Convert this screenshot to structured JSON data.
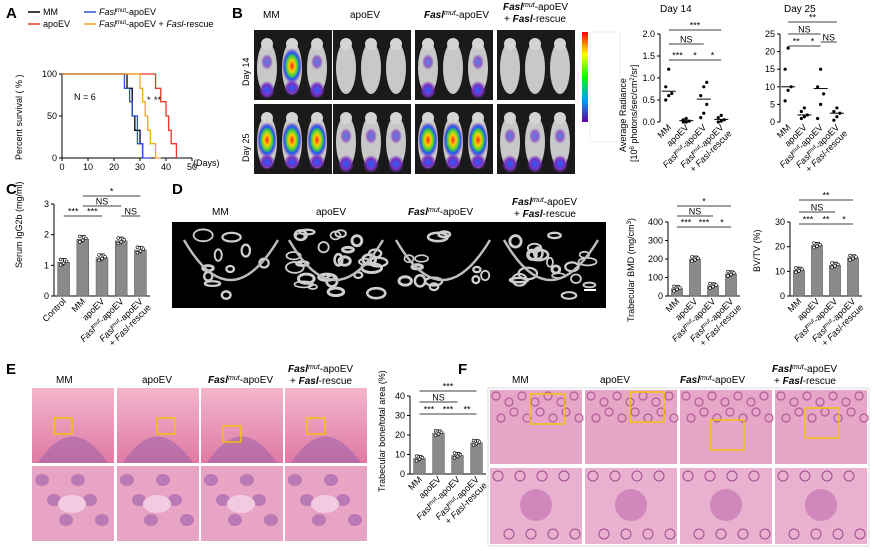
{
  "panels": {
    "A": "A",
    "B": "B",
    "C": "C",
    "D": "D",
    "E": "E",
    "F": "F"
  },
  "groups": [
    "MM",
    "apoEV",
    "Fasl",
    "mut",
    "-apoEV",
    "Fasl",
    "-rescue"
  ],
  "group_labels": {
    "mm": "MM",
    "apoev": "apoEV",
    "mut_prefix": "Fasl",
    "mut_sup": "mut",
    "mut_suffix": "-apoEV",
    "rescue_plus": "+ ",
    "rescue_fasl": "Fasl",
    "rescue_suffix": "-rescue"
  },
  "sig": {
    "s1": "*",
    "s2": "**",
    "s3": "***",
    "ns": "NS"
  },
  "panelA": {
    "legend": [
      "MM",
      "apoEV",
      "Fasl",
      "mut",
      "-apoEV",
      "Fasl",
      "mut",
      "-apoEV + ",
      "Fasl",
      "-rescue"
    ],
    "n_label": "N = 6",
    "ylabel": "Percent survival ( % )",
    "xlabel_unit": "(Days)",
    "colors": {
      "MM": "#000000",
      "apoEV": "#e8372a",
      "mut": "#2f4fd8",
      "rescue": "#f5a623"
    }
  },
  "panelB": {
    "row_day14": "Day 14",
    "row_day25": "Day 25",
    "chart_day14_title": "Day 14",
    "chart_day25_title": "Day 25",
    "ylabel_line1": "Average Radiance",
    "ylabel_line2": "[10",
    "ylabel_sup": "6",
    "ylabel_line3": " photons/sec/cm",
    "ylabel_sup2": "2",
    "ylabel_line4": "/sr]"
  },
  "panelC": {
    "ylabel": "Serum IgG2b (mg/ml)",
    "control": "Control"
  },
  "panelD": {
    "bmd_ylabel": "Trabecular BMD (mg/cm",
    "bmd_sup": "3",
    "bmd_close": ")",
    "bvtv_ylabel": "BV/TV (%)"
  },
  "panelE": {
    "ylabel": "Trabecular bone/total area (%)"
  },
  "chart_data": [
    {
      "id": "A",
      "type": "line",
      "xlabel": "(Days)",
      "ylabel": "Percent survival ( % )",
      "xlim": [
        0,
        50
      ],
      "ylim": [
        0,
        100
      ],
      "xticks": [
        0,
        10,
        20,
        30,
        40,
        50
      ],
      "yticks": [
        0,
        50,
        100
      ],
      "series": [
        {
          "name": "MM",
          "color": "#000000",
          "steps": [
            [
              0,
              100
            ],
            [
              25,
              100
            ],
            [
              25,
              83
            ],
            [
              27,
              83
            ],
            [
              27,
              50
            ],
            [
              28,
              50
            ],
            [
              28,
              33
            ],
            [
              30,
              33
            ],
            [
              30,
              17
            ],
            [
              31,
              17
            ],
            [
              31,
              0
            ]
          ]
        },
        {
          "name": "apoEV",
          "color": "#e8372a",
          "steps": [
            [
              0,
              100
            ],
            [
              36,
              100
            ],
            [
              36,
              83
            ],
            [
              38,
              83
            ],
            [
              38,
              67
            ],
            [
              40,
              67
            ],
            [
              40,
              50
            ],
            [
              41,
              50
            ],
            [
              41,
              33
            ],
            [
              42,
              33
            ],
            [
              42,
              17
            ],
            [
              44,
              17
            ],
            [
              44,
              0
            ]
          ]
        },
        {
          "name": "Fasl mut-apoEV",
          "color": "#2f4fd8",
          "steps": [
            [
              0,
              100
            ],
            [
              24,
              100
            ],
            [
              24,
              83
            ],
            [
              26,
              83
            ],
            [
              26,
              67
            ],
            [
              27,
              67
            ],
            [
              27,
              50
            ],
            [
              29,
              50
            ],
            [
              29,
              17
            ],
            [
              31,
              17
            ],
            [
              31,
              0
            ],
            [
              34,
              0
            ]
          ]
        },
        {
          "name": "Fasl mut-apoEV + Fasl-rescue",
          "color": "#f5a623",
          "steps": [
            [
              0,
              100
            ],
            [
              30,
              100
            ],
            [
              30,
              83
            ],
            [
              31,
              83
            ],
            [
              31,
              67
            ],
            [
              32,
              67
            ],
            [
              32,
              50
            ],
            [
              33,
              50
            ],
            [
              33,
              33
            ],
            [
              34,
              33
            ],
            [
              34,
              17
            ],
            [
              36,
              17
            ],
            [
              36,
              0
            ],
            [
              38,
              0
            ]
          ]
        }
      ],
      "annotations": [
        "*",
        "**"
      ]
    },
    {
      "id": "B-day14",
      "type": "scatter",
      "title": "Day 14",
      "ylim": [
        0,
        2
      ],
      "yticks": [
        0,
        0.5,
        1.0,
        1.5,
        2.0
      ],
      "categories": [
        "MM",
        "apoEV",
        "Fasl mut-apoEV",
        "Fasl mut-apoEV + Fasl-rescue"
      ],
      "points": [
        [
          0.5,
          0.6,
          0.65,
          0.8,
          1.2
        ],
        [
          0,
          0,
          0.02,
          0.05,
          0.08
        ],
        [
          0.1,
          0.2,
          0.4,
          0.6,
          0.8,
          0.9
        ],
        [
          0,
          0.02,
          0.05,
          0.1,
          0.15
        ]
      ],
      "medians": [
        0.7,
        0.03,
        0.52,
        0.06
      ]
    },
    {
      "id": "B-day25",
      "type": "scatter",
      "title": "Day 25",
      "ylim": [
        0,
        25
      ],
      "yticks": [
        0,
        5,
        10,
        15,
        20,
        25
      ],
      "categories": [
        "MM",
        "apoEV",
        "Fasl mut-apoEV",
        "Fasl mut-apoEV + Fasl-rescue"
      ],
      "points": [
        [
          6,
          9,
          10,
          15,
          21
        ],
        [
          1,
          1.5,
          2,
          3,
          4
        ],
        [
          1,
          5,
          8,
          10,
          15
        ],
        [
          0.5,
          1.5,
          2.5,
          3,
          4
        ]
      ],
      "medians": [
        10,
        2,
        9.5,
        2.5
      ]
    },
    {
      "id": "C",
      "type": "bar",
      "ylabel": "Serum IgG2b (mg/ml)",
      "ylim": [
        0,
        3
      ],
      "yticks": [
        0,
        1,
        2,
        3
      ],
      "categories": [
        "Control",
        "MM",
        "apoEV",
        "Fasl mut-apoEV",
        "Fasl mut-apoEV + Fasl-rescue"
      ],
      "values": [
        1.1,
        1.85,
        1.25,
        1.8,
        1.5
      ]
    },
    {
      "id": "D-BMD",
      "type": "bar",
      "ylabel": "Trabecular BMD (mg/cm3)",
      "ylim": [
        0,
        400
      ],
      "yticks": [
        0,
        100,
        200,
        300,
        400
      ],
      "categories": [
        "MM",
        "apoEV",
        "Fasl mut-apoEV",
        "Fasl mut-apoEV + Fasl-rescue"
      ],
      "values": [
        40,
        200,
        55,
        120
      ]
    },
    {
      "id": "D-BVTV",
      "type": "bar",
      "ylabel": "BV/TV (%)",
      "ylim": [
        0,
        30
      ],
      "yticks": [
        0,
        10,
        20,
        30
      ],
      "categories": [
        "MM",
        "apoEV",
        "Fasl mut-apoEV",
        "Fasl mut-apoEV + Fasl-rescue"
      ],
      "values": [
        10.5,
        20.5,
        12.5,
        15.5
      ]
    },
    {
      "id": "E",
      "type": "bar",
      "ylabel": "Trabecular bone/total area (%)",
      "ylim": [
        0,
        40
      ],
      "yticks": [
        0,
        10,
        20,
        30,
        40
      ],
      "categories": [
        "MM",
        "apoEV",
        "Fasl mut-apoEV",
        "Fasl mut-apoEV + Fasl-rescue"
      ],
      "values": [
        8,
        21,
        9.5,
        16
      ]
    }
  ]
}
